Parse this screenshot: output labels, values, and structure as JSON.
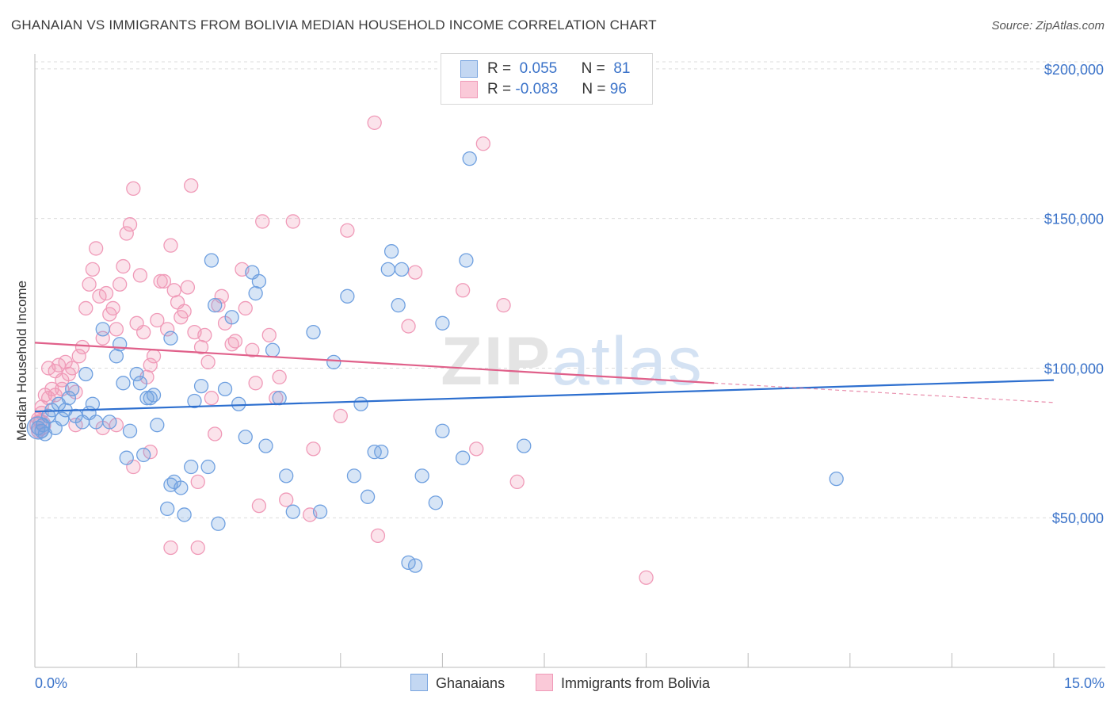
{
  "chart_data": {
    "type": "scatter",
    "title": "GHANAIAN VS IMMIGRANTS FROM BOLIVIA MEDIAN HOUSEHOLD INCOME CORRELATION CHART",
    "source": "Source: ZipAtlas.com",
    "ylabel": "Median Household Income",
    "xlabel": "",
    "xlim": [
      0,
      15
    ],
    "ylim": [
      0,
      205000
    ],
    "x_tick_labels": [
      "0.0%",
      "15.0%"
    ],
    "y_ticks": [
      {
        "value": 50000,
        "label": "$50,000"
      },
      {
        "value": 100000,
        "label": "$100,000"
      },
      {
        "value": 150000,
        "label": "$150,000"
      },
      {
        "value": 200000,
        "label": "$200,000"
      }
    ],
    "grid": "horizontal dashed",
    "legend_placement": "top-center",
    "watermark": "ZIPatlas",
    "series": [
      {
        "name": "Ghanaians",
        "color": "#6fa0e0",
        "line_color": "#2d6fcf",
        "R": "0.055",
        "N": "81",
        "trend": {
          "x": [
            0.0,
            15.0
          ],
          "y": [
            85500,
            96000
          ]
        },
        "points": [
          [
            0.05,
            80000
          ],
          [
            0.1,
            79000
          ],
          [
            0.12,
            81000
          ],
          [
            0.15,
            78000
          ],
          [
            0.2,
            84000
          ],
          [
            0.25,
            86000
          ],
          [
            0.3,
            80000
          ],
          [
            0.35,
            88000
          ],
          [
            0.4,
            83000
          ],
          [
            0.45,
            86000
          ],
          [
            0.5,
            90000
          ],
          [
            0.55,
            93000
          ],
          [
            0.6,
            84000
          ],
          [
            0.7,
            82000
          ],
          [
            0.75,
            98000
          ],
          [
            0.8,
            85000
          ],
          [
            0.85,
            88000
          ],
          [
            0.9,
            82000
          ],
          [
            1.0,
            113000
          ],
          [
            1.1,
            82000
          ],
          [
            1.2,
            104000
          ],
          [
            1.25,
            108000
          ],
          [
            1.3,
            95000
          ],
          [
            1.35,
            70000
          ],
          [
            1.4,
            79000
          ],
          [
            1.5,
            98000
          ],
          [
            1.55,
            95000
          ],
          [
            1.6,
            71000
          ],
          [
            1.65,
            90000
          ],
          [
            1.7,
            90000
          ],
          [
            1.75,
            91000
          ],
          [
            1.8,
            81000
          ],
          [
            1.95,
            53000
          ],
          [
            2.0,
            61000
          ],
          [
            2.05,
            62000
          ],
          [
            2.15,
            60000
          ],
          [
            2.2,
            51000
          ],
          [
            2.3,
            67000
          ],
          [
            2.35,
            89000
          ],
          [
            2.45,
            94000
          ],
          [
            2.55,
            67000
          ],
          [
            2.6,
            136000
          ],
          [
            2.65,
            121000
          ],
          [
            2.7,
            48000
          ],
          [
            2.8,
            93000
          ],
          [
            2.9,
            117000
          ],
          [
            3.0,
            88000
          ],
          [
            3.1,
            77000
          ],
          [
            3.2,
            132000
          ],
          [
            3.25,
            125000
          ],
          [
            3.3,
            129000
          ],
          [
            3.4,
            74000
          ],
          [
            3.5,
            106000
          ],
          [
            3.6,
            90000
          ],
          [
            3.7,
            64000
          ],
          [
            3.8,
            52000
          ],
          [
            4.1,
            112000
          ],
          [
            4.2,
            52000
          ],
          [
            4.4,
            102000
          ],
          [
            4.6,
            124000
          ],
          [
            4.7,
            64000
          ],
          [
            4.8,
            88000
          ],
          [
            4.9,
            57000
          ],
          [
            5.0,
            72000
          ],
          [
            5.1,
            72000
          ],
          [
            5.2,
            133000
          ],
          [
            5.25,
            139000
          ],
          [
            5.35,
            121000
          ],
          [
            5.4,
            133000
          ],
          [
            5.5,
            35000
          ],
          [
            5.6,
            34000
          ],
          [
            5.7,
            64000
          ],
          [
            5.9,
            55000
          ],
          [
            6.0,
            79000
          ],
          [
            6.0,
            115000
          ],
          [
            6.3,
            70000
          ],
          [
            6.35,
            136000
          ],
          [
            6.4,
            170000
          ],
          [
            7.2,
            74000
          ],
          [
            11.8,
            63000
          ],
          [
            2.0,
            110000
          ]
        ]
      },
      {
        "name": "Immigrants from Bolivia",
        "color": "#f09ab8",
        "line_color": "#e0608a",
        "R": "-0.083",
        "N": "96",
        "trend": {
          "x": [
            0.0,
            10.0
          ],
          "y": [
            108500,
            95000
          ]
        },
        "trend_dashed": {
          "x": [
            10.0,
            15.0
          ],
          "y": [
            95000,
            88500
          ]
        },
        "points": [
          [
            0.05,
            79000
          ],
          [
            0.08,
            82000
          ],
          [
            0.1,
            87000
          ],
          [
            0.15,
            91000
          ],
          [
            0.2,
            90000
          ],
          [
            0.25,
            93000
          ],
          [
            0.3,
            99000
          ],
          [
            0.35,
            101000
          ],
          [
            0.4,
            96000
          ],
          [
            0.45,
            102000
          ],
          [
            0.5,
            98000
          ],
          [
            0.55,
            100000
          ],
          [
            0.6,
            92000
          ],
          [
            0.65,
            104000
          ],
          [
            0.7,
            107000
          ],
          [
            0.75,
            120000
          ],
          [
            0.8,
            128000
          ],
          [
            0.85,
            133000
          ],
          [
            0.9,
            140000
          ],
          [
            0.95,
            124000
          ],
          [
            1.0,
            110000
          ],
          [
            1.05,
            125000
          ],
          [
            1.1,
            118000
          ],
          [
            1.15,
            120000
          ],
          [
            1.2,
            113000
          ],
          [
            1.25,
            128000
          ],
          [
            1.3,
            134000
          ],
          [
            1.35,
            145000
          ],
          [
            1.4,
            148000
          ],
          [
            1.45,
            160000
          ],
          [
            1.5,
            115000
          ],
          [
            1.55,
            131000
          ],
          [
            1.6,
            112000
          ],
          [
            1.65,
            97000
          ],
          [
            1.7,
            101000
          ],
          [
            1.75,
            104000
          ],
          [
            1.8,
            116000
          ],
          [
            1.85,
            129000
          ],
          [
            1.9,
            129000
          ],
          [
            1.95,
            113000
          ],
          [
            2.0,
            141000
          ],
          [
            2.05,
            126000
          ],
          [
            2.1,
            122000
          ],
          [
            2.15,
            117000
          ],
          [
            2.2,
            119000
          ],
          [
            2.25,
            127000
          ],
          [
            2.3,
            161000
          ],
          [
            2.35,
            112000
          ],
          [
            2.4,
            62000
          ],
          [
            2.45,
            107000
          ],
          [
            2.5,
            111000
          ],
          [
            2.55,
            102000
          ],
          [
            2.6,
            90000
          ],
          [
            2.65,
            78000
          ],
          [
            2.7,
            121000
          ],
          [
            2.75,
            124000
          ],
          [
            2.8,
            115000
          ],
          [
            2.9,
            108000
          ],
          [
            2.95,
            109000
          ],
          [
            3.05,
            133000
          ],
          [
            3.1,
            120000
          ],
          [
            3.2,
            106000
          ],
          [
            3.25,
            95000
          ],
          [
            3.3,
            54000
          ],
          [
            3.35,
            149000
          ],
          [
            3.45,
            111000
          ],
          [
            3.55,
            90000
          ],
          [
            3.6,
            97000
          ],
          [
            3.7,
            56000
          ],
          [
            3.8,
            149000
          ],
          [
            4.05,
            51000
          ],
          [
            4.1,
            73000
          ],
          [
            4.5,
            84000
          ],
          [
            4.6,
            146000
          ],
          [
            5.0,
            182000
          ],
          [
            5.05,
            44000
          ],
          [
            5.5,
            114000
          ],
          [
            5.6,
            132000
          ],
          [
            6.3,
            126000
          ],
          [
            6.5,
            73000
          ],
          [
            6.6,
            175000
          ],
          [
            6.9,
            121000
          ],
          [
            7.1,
            62000
          ],
          [
            9.0,
            30000
          ],
          [
            0.05,
            83000
          ],
          [
            0.1,
            85000
          ],
          [
            0.2,
            100000
          ],
          [
            0.3,
            91000
          ],
          [
            0.4,
            93000
          ],
          [
            0.6,
            81000
          ],
          [
            1.0,
            80000
          ],
          [
            1.2,
            81000
          ],
          [
            1.45,
            67000
          ],
          [
            1.7,
            72000
          ],
          [
            2.0,
            40000
          ],
          [
            2.4,
            40000
          ]
        ]
      }
    ]
  },
  "legend_bottom": [
    "Ghanaians",
    "Immigrants from Bolivia"
  ],
  "legend_top": {
    "r_label": "R =",
    "n_label": "N ="
  }
}
